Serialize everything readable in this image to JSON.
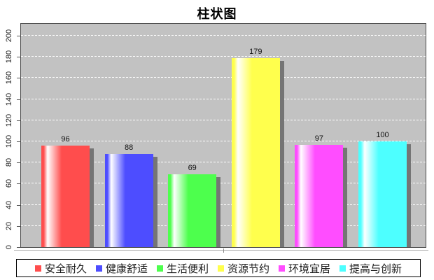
{
  "chart_data": {
    "type": "bar",
    "title": "柱状图",
    "categories": [
      "安全耐久",
      "健康舒适",
      "生活便利",
      "资源节约",
      "环境宜居",
      "提高与创新"
    ],
    "values": [
      96,
      88,
      69,
      179,
      97,
      100
    ],
    "value_labels": [
      "96",
      "88",
      "69",
      "179",
      "97",
      "100"
    ],
    "bar_colors": [
      "#ff4d4d",
      "#4d4dff",
      "#4dff4d",
      "#ffff4d",
      "#ff4dff",
      "#4dffff"
    ],
    "xlabel": "",
    "ylabel": "",
    "ylim": [
      0,
      200
    ],
    "yticks": [
      0,
      20,
      40,
      60,
      80,
      100,
      120,
      140,
      160,
      180,
      200
    ],
    "grid": "horizontal dashed white",
    "legend_position": "bottom",
    "plot_background": "#c2c2c2",
    "shadow_color": "#757575",
    "highlight_color": "#ffffff"
  }
}
